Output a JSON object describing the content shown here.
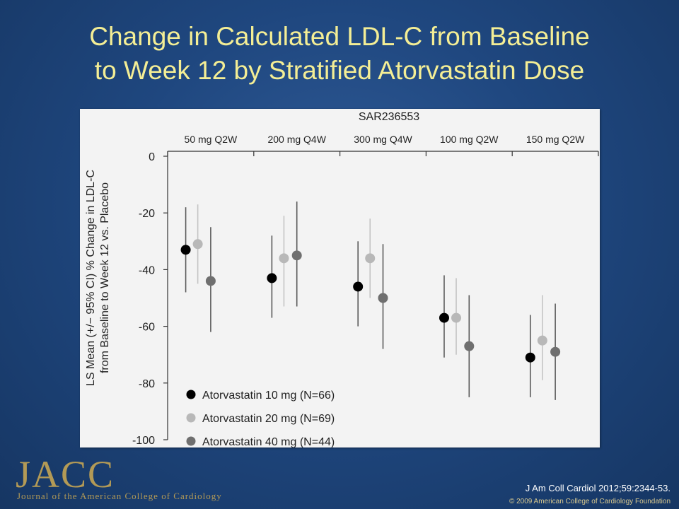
{
  "slide": {
    "title_line1": "Change in Calculated LDL-C from Baseline",
    "title_line2": "to Week 12 by Stratified Atorvastatin Dose",
    "logo_text": "JACC",
    "logo_subtitle": "Journal of the American College of Cardiology",
    "citation": "J Am Coll Cardiol 2012;59:2344-53.",
    "copyright": "© 2009 American College of Cardiology Foundation",
    "colors": {
      "title": "#f4ee95",
      "background": "#1f477f",
      "logo": "#b39a56"
    }
  },
  "chart_data": {
    "type": "scatter",
    "title": "SAR236553",
    "ylabel_line1": "LS Mean (+/− 95% CI) % Change in LDL-C",
    "ylabel_line2": "from Baseline to Week 12 vs. Placebo",
    "ylim": [
      -100,
      0
    ],
    "yticks": [
      0,
      -20,
      -40,
      -60,
      -80,
      -100
    ],
    "ytick_labels": [
      "0",
      "-20",
      "-40",
      "-60",
      "-80",
      "-100"
    ],
    "categories": [
      "50 mg Q2W",
      "200 mg Q4W",
      "300 mg Q4W",
      "100 mg Q2W",
      "150 mg Q2W"
    ],
    "legend_position": "bottom-left",
    "series": [
      {
        "name": "Atorvastatin 10 mg (N=66)",
        "color": "#000000",
        "values": [
          -33,
          -43,
          -46,
          -57,
          -71
        ],
        "ci_low": [
          -48,
          -57,
          -60,
          -71,
          -85
        ],
        "ci_high": [
          -18,
          -28,
          -30,
          -42,
          -56
        ]
      },
      {
        "name": "Atorvastatin 20 mg (N=69)",
        "color": "#b8b8b8",
        "values": [
          -31,
          -36,
          -36,
          -57,
          -65
        ],
        "ci_low": [
          -45,
          -53,
          -50,
          -70,
          -79
        ],
        "ci_high": [
          -17,
          -21,
          -22,
          -43,
          -49
        ]
      },
      {
        "name": "Atorvastatin 40 mg (N=44)",
        "color": "#6f6f6f",
        "values": [
          -44,
          -35,
          -50,
          -67,
          -69
        ],
        "ci_low": [
          -62,
          -53,
          -68,
          -85,
          -86
        ],
        "ci_high": [
          -25,
          -16,
          -31,
          -49,
          -52
        ]
      }
    ]
  }
}
